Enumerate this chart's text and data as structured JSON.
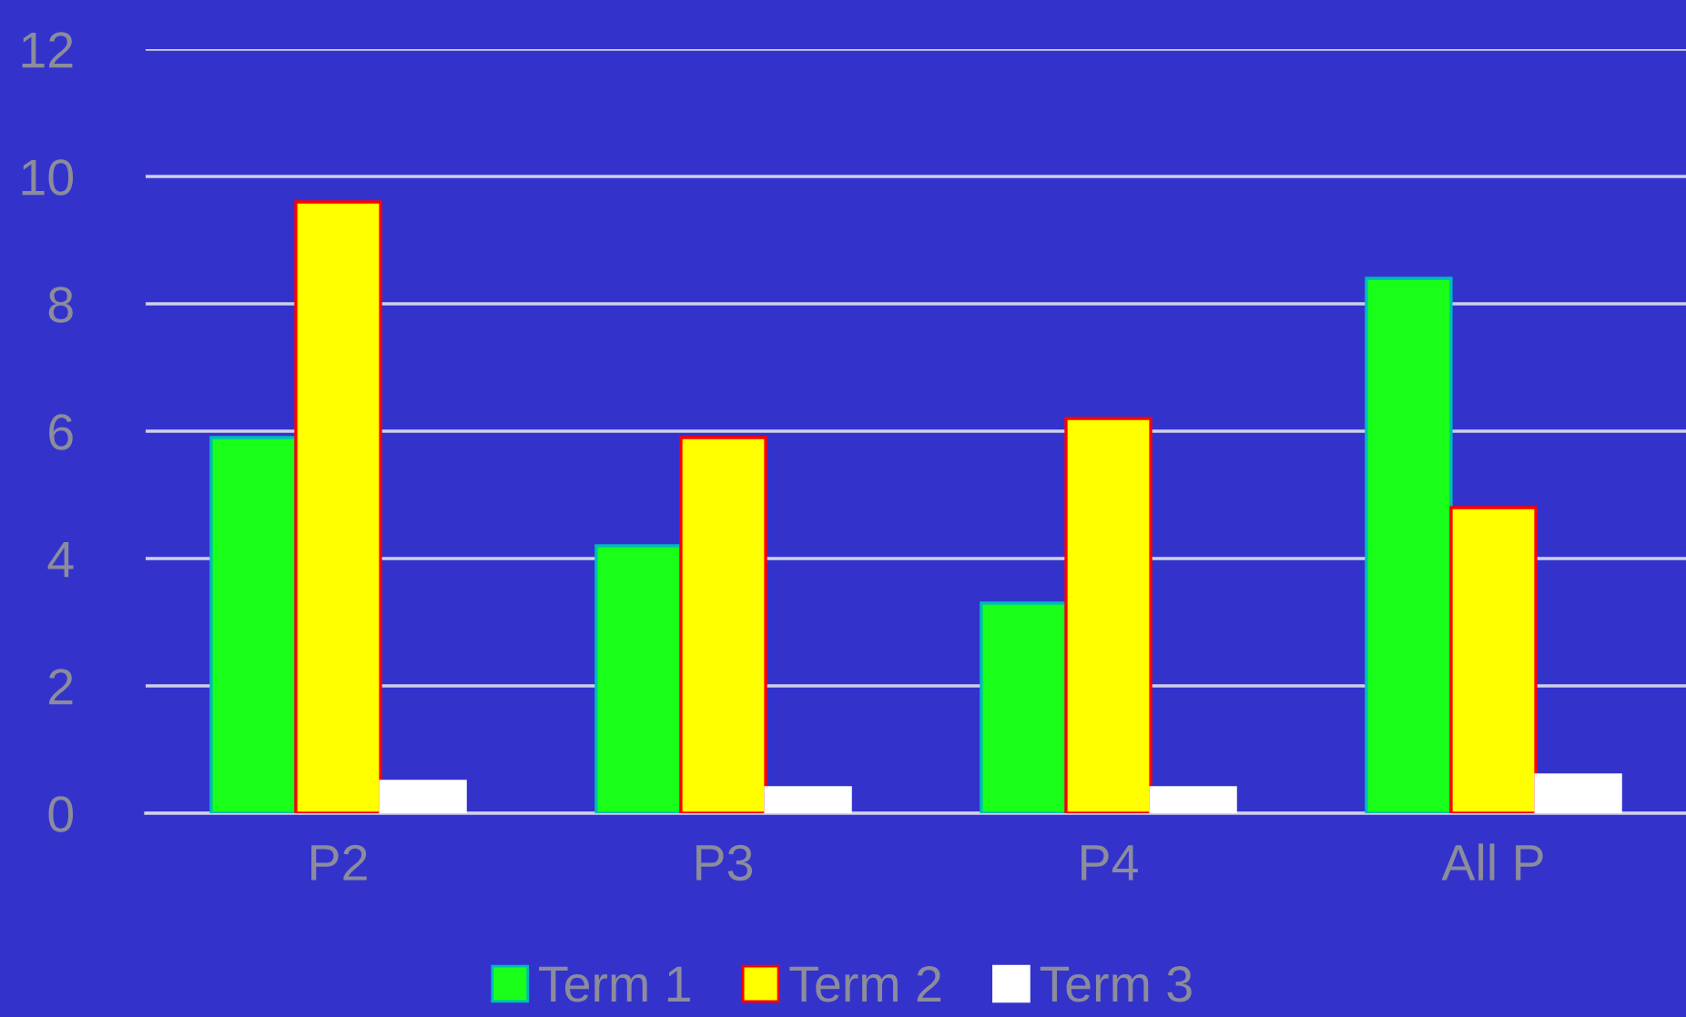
{
  "chart_data": {
    "type": "bar",
    "categories": [
      "P2",
      "P3",
      "P4",
      "All P"
    ],
    "series": [
      {
        "name": "Term 1",
        "color": "#19ff19",
        "values": [
          5.9,
          4.2,
          3.3,
          8.4
        ]
      },
      {
        "name": "Term 2",
        "color": "#ffff00",
        "values": [
          9.6,
          5.9,
          6.2,
          4.8
        ]
      },
      {
        "name": "Term 3",
        "color": "#ffffff",
        "values": [
          0.5,
          0.4,
          0.4,
          0.6
        ]
      }
    ],
    "ylim": [
      0,
      12
    ],
    "yticks": [
      0,
      2,
      4,
      6,
      8,
      10,
      12
    ],
    "grid": "y",
    "legend": "bottom"
  }
}
